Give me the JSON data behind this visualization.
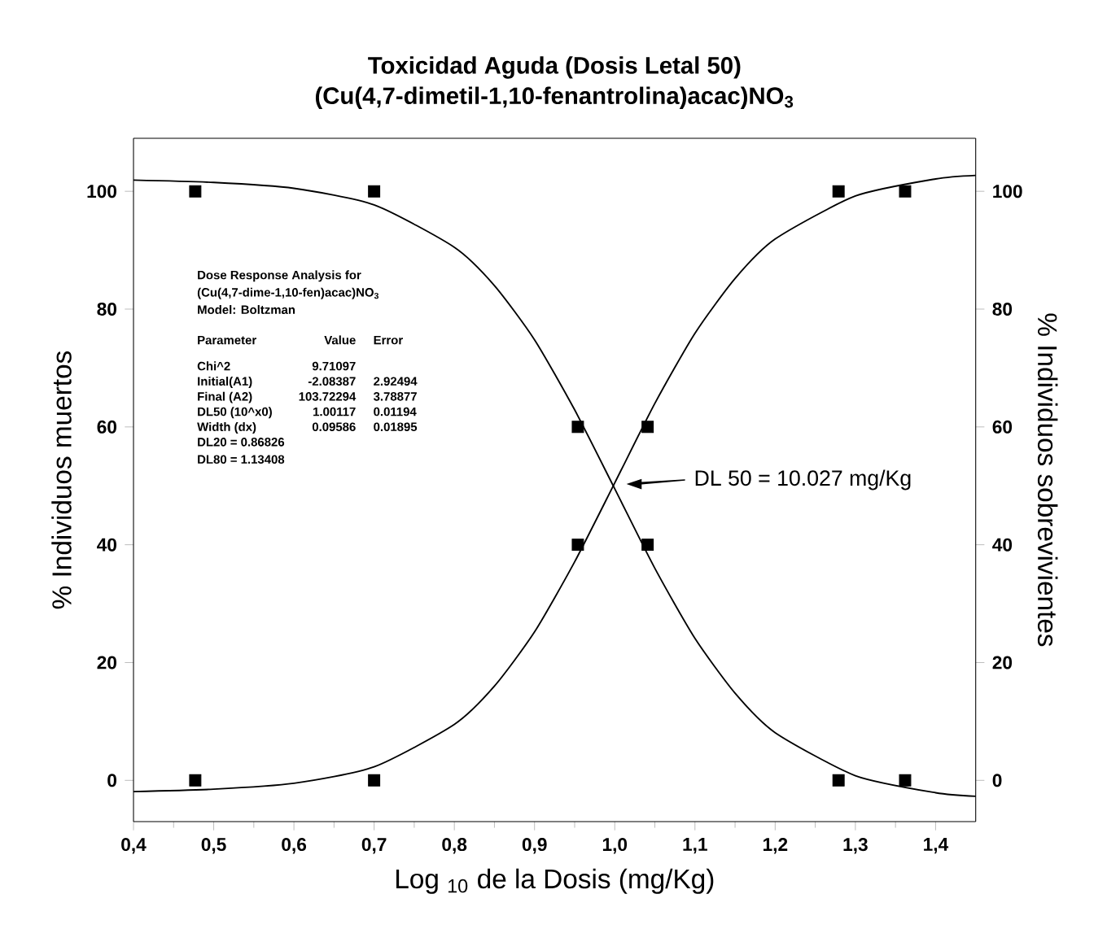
{
  "chart_data": {
    "type": "scatter",
    "title": "Toxicidad Aguda (Dosis Letal 50)",
    "subtitle": "(Cu(4,7-dimetil-1,10-fenantrolina)acac)NO$_{3}$",
    "xlabel": "Log $_{10}$ de la Dosis (mg/Kg)",
    "ylabel": "% Individuos muertos",
    "y2label": "% Individuos sobrevivientes",
    "xlim": [
      0.4,
      1.45
    ],
    "xticks": [
      {
        "value": 0.4,
        "label": "0,4"
      },
      {
        "value": 0.5,
        "label": "0,5"
      },
      {
        "value": 0.6,
        "label": "0,6"
      },
      {
        "value": 0.7,
        "label": "0,7"
      },
      {
        "value": 0.8,
        "label": "0,8"
      },
      {
        "value": 0.9,
        "label": "0,9"
      },
      {
        "value": 1.0,
        "label": "1,0"
      },
      {
        "value": 1.1,
        "label": "1,1"
      },
      {
        "value": 1.2,
        "label": "1,2"
      },
      {
        "value": 1.3,
        "label": "1,3"
      },
      {
        "value": 1.4,
        "label": "1,4"
      }
    ],
    "ylim": [
      -7,
      109
    ],
    "yticks": [
      0,
      20,
      40,
      60,
      80,
      100
    ],
    "y2lim": [
      -7,
      109
    ],
    "y2ticks": [
      0,
      20,
      40,
      60,
      80,
      100
    ],
    "series": [
      {
        "marker": "square",
        "color": "#000000",
        "x": [
          0.477,
          0.7,
          0.954,
          1.041,
          1.279,
          1.362
        ],
        "values": [
          0,
          0,
          40,
          60,
          100,
          100
        ]
      },
      {
        "marker": "square",
        "color": "#000000",
        "x": [
          0.477,
          0.7,
          0.954,
          1.041,
          1.279,
          1.362
        ],
        "values": [
          100,
          100,
          60,
          40,
          0,
          0
        ]
      },
      {
        "type": "line",
        "marker": "none",
        "line_style": "solid",
        "color": "#000000",
        "x": [
          0.4,
          0.5,
          0.6,
          0.7,
          0.8,
          0.85,
          0.9,
          0.95,
          1.0,
          1.05,
          1.1,
          1.15,
          1.2,
          1.3,
          1.4,
          1.45
        ],
        "values": [
          -1.9,
          -1.5,
          -0.5,
          2.3,
          9.5,
          16.0,
          25.2,
          37.1,
          50.5,
          64.0,
          75.9,
          85.2,
          91.9,
          99.2,
          102.1,
          102.7
        ]
      },
      {
        "type": "line",
        "marker": "none",
        "line_style": "solid",
        "color": "#000000",
        "x": [
          0.4,
          0.5,
          0.6,
          0.7,
          0.8,
          0.85,
          0.9,
          0.95,
          1.0,
          1.05,
          1.1,
          1.15,
          1.2,
          1.3,
          1.4,
          1.45
        ],
        "values": [
          101.9,
          101.5,
          100.5,
          97.7,
          90.5,
          84.0,
          74.8,
          62.9,
          49.5,
          36.0,
          24.1,
          14.8,
          8.1,
          0.8,
          -2.1,
          -2.7
        ]
      }
    ],
    "annotations": [
      "Dose Response Analysis for",
      "(Cu(4,7-dime-1,10-fen)acac)NO$_{3}$",
      "Model: Boltzman",
      "Parameter",
      "Value",
      "Error",
      "Chi^2",
      "9.71097",
      "Initial(A1)",
      "-2.08387",
      "2.92494",
      "Final (A2)",
      "103.72294",
      "3.78877",
      "DL50  (10^x0)",
      "1.00117",
      "0.01194",
      "Width (dx)",
      "0.09586",
      "0.01895",
      "DL20 = 0.86826",
      "DL80 = 1.13408",
      "DL 50 = 10.027 mg/Kg"
    ]
  }
}
